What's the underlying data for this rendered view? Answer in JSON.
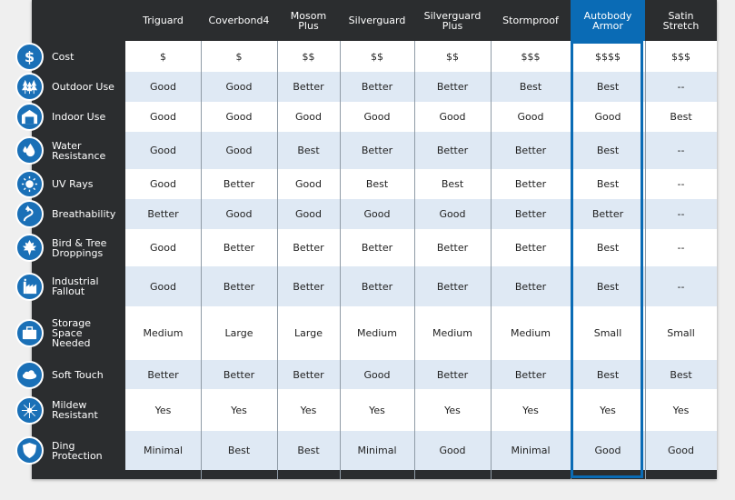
{
  "columns": [
    "Triguard",
    "Coverbond4",
    "Mosom Plus",
    "Silverguard",
    "Silverguard Plus",
    "Stormproof",
    "Autobody Armor",
    "Satin Stretch"
  ],
  "columns_display": [
    [
      "Triguard"
    ],
    [
      "Coverbond4"
    ],
    [
      "Mosom",
      "Plus"
    ],
    [
      "Silverguard"
    ],
    [
      "Silverguard",
      "Plus"
    ],
    [
      "Stormproof"
    ],
    [
      "Autobody",
      "Armor"
    ],
    [
      "Satin",
      "Stretch"
    ]
  ],
  "highlight_column": "Autobody Armor",
  "colors": {
    "accent": "#0a6bb5",
    "row_alt": "#dfe9f4",
    "dark": "#2b2d2f"
  },
  "rows": [
    {
      "label": [
        "Cost"
      ],
      "icon": "dollar-icon",
      "values": [
        "$",
        "$",
        "$$",
        "$$",
        "$$",
        "$$$",
        "$$$$",
        "$$$"
      ]
    },
    {
      "label": [
        "Outdoor Use"
      ],
      "icon": "trees-icon",
      "values": [
        "Good",
        "Good",
        "Better",
        "Better",
        "Better",
        "Best",
        "Best",
        "--"
      ]
    },
    {
      "label": [
        "Indoor Use"
      ],
      "icon": "garage-icon",
      "values": [
        "Good",
        "Good",
        "Good",
        "Good",
        "Good",
        "Good",
        "Good",
        "Best"
      ]
    },
    {
      "label": [
        "Water",
        "Resistance"
      ],
      "icon": "water-drops-icon",
      "values": [
        "Good",
        "Good",
        "Best",
        "Better",
        "Better",
        "Better",
        "Best",
        "--"
      ]
    },
    {
      "label": [
        "UV Rays"
      ],
      "icon": "sun-icon",
      "values": [
        "Good",
        "Better",
        "Good",
        "Best",
        "Best",
        "Better",
        "Best",
        "--"
      ]
    },
    {
      "label": [
        "Breathability"
      ],
      "icon": "breath-icon",
      "values": [
        "Better",
        "Good",
        "Good",
        "Good",
        "Good",
        "Better",
        "Better",
        "--"
      ]
    },
    {
      "label": [
        "Bird & Tree",
        "Droppings"
      ],
      "icon": "leaf-icon",
      "values": [
        "Good",
        "Better",
        "Better",
        "Better",
        "Better",
        "Better",
        "Best",
        "--"
      ]
    },
    {
      "label": [
        "Industrial",
        "Fallout"
      ],
      "icon": "factory-icon",
      "values": [
        "Good",
        "Better",
        "Better",
        "Better",
        "Better",
        "Better",
        "Best",
        "--"
      ]
    },
    {
      "label": [
        "Storage",
        "Space",
        "Needed"
      ],
      "icon": "briefcase-icon",
      "values": [
        "Medium",
        "Large",
        "Large",
        "Medium",
        "Medium",
        "Medium",
        "Small",
        "Small"
      ]
    },
    {
      "label": [
        "Soft Touch"
      ],
      "icon": "cloud-icon",
      "values": [
        "Better",
        "Better",
        "Better",
        "Good",
        "Better",
        "Better",
        "Best",
        "Best"
      ]
    },
    {
      "label": [
        "Mildew",
        "Resistant"
      ],
      "icon": "mildew-icon",
      "values": [
        "Yes",
        "Yes",
        "Yes",
        "Yes",
        "Yes",
        "Yes",
        "Yes",
        "Yes"
      ]
    },
    {
      "label": [
        "Ding",
        "Protection"
      ],
      "icon": "shield-icon",
      "values": [
        "Minimal",
        "Best",
        "Best",
        "Minimal",
        "Good",
        "Minimal",
        "Good",
        "Good"
      ]
    }
  ]
}
